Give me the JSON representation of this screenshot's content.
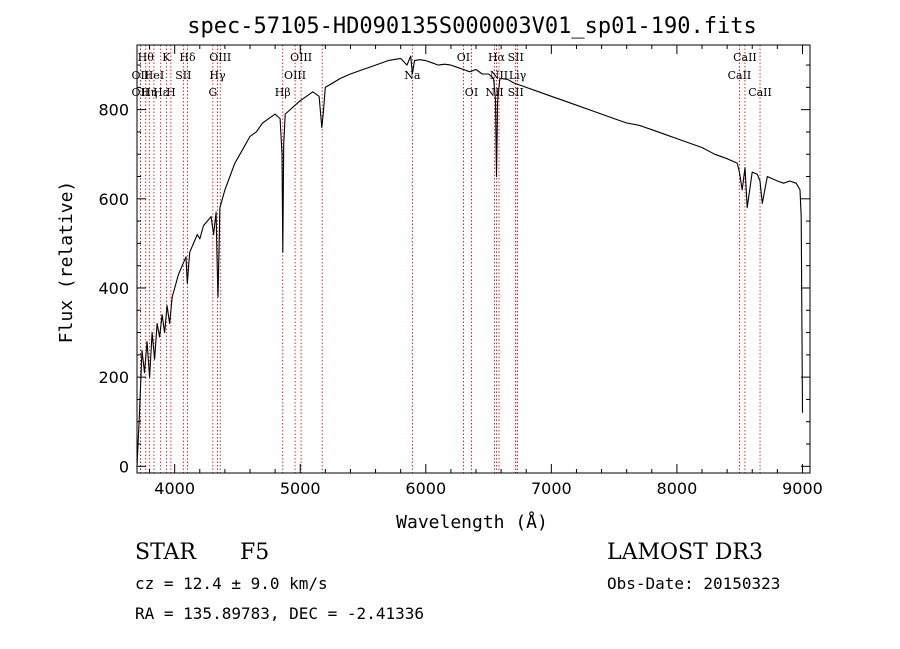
{
  "chart_data": {
    "type": "line",
    "title": "spec-57105-HD090135S000003V01_sp01-190.fits",
    "xlabel": "Wavelength (Å)",
    "ylabel": "Flux (relative)",
    "xlim": [
      3700,
      9060
    ],
    "ylim": [
      -15,
      945
    ],
    "xticks": [
      4000,
      5000,
      6000,
      7000,
      8000,
      9000
    ],
    "yticks": [
      0,
      200,
      400,
      600,
      800
    ],
    "series": [
      {
        "name": "flux",
        "x": [
          3700,
          3720,
          3740,
          3760,
          3780,
          3800,
          3820,
          3840,
          3860,
          3880,
          3900,
          3920,
          3940,
          3960,
          3980,
          4000,
          4030,
          4060,
          4090,
          4101,
          4120,
          4150,
          4180,
          4200,
          4230,
          4260,
          4290,
          4310,
          4330,
          4340,
          4345,
          4360,
          4380,
          4400,
          4440,
          4480,
          4520,
          4560,
          4600,
          4650,
          4700,
          4750,
          4800,
          4840,
          4855,
          4861,
          4868,
          4880,
          4920,
          4960,
          5000,
          5050,
          5100,
          5150,
          5172,
          5183,
          5200,
          5260,
          5320,
          5400,
          5500,
          5600,
          5700,
          5800,
          5850,
          5880,
          5893,
          5910,
          5950,
          6000,
          6050,
          6100,
          6150,
          6200,
          6250,
          6300,
          6350,
          6400,
          6450,
          6500,
          6540,
          6555,
          6563,
          6572,
          6590,
          6650,
          6700,
          6750,
          6800,
          6900,
          7000,
          7100,
          7200,
          7300,
          7400,
          7500,
          7600,
          7700,
          7800,
          7900,
          8000,
          8100,
          8200,
          8300,
          8400,
          8480,
          8498,
          8520,
          8542,
          8560,
          8600,
          8640,
          8662,
          8680,
          8720,
          8760,
          8800,
          8850,
          8900,
          8950,
          8980,
          8990,
          9000
        ],
        "y": [
          0,
          120,
          260,
          210,
          280,
          200,
          300,
          240,
          320,
          290,
          340,
          300,
          360,
          320,
          380,
          400,
          430,
          450,
          470,
          410,
          480,
          500,
          520,
          510,
          540,
          550,
          560,
          520,
          570,
          430,
          380,
          580,
          600,
          620,
          650,
          680,
          700,
          720,
          740,
          750,
          770,
          780,
          790,
          780,
          700,
          480,
          720,
          790,
          800,
          810,
          820,
          830,
          840,
          830,
          760,
          790,
          850,
          860,
          870,
          880,
          890,
          900,
          910,
          915,
          900,
          920,
          880,
          910,
          912,
          910,
          905,
          900,
          902,
          900,
          895,
          890,
          885,
          890,
          880,
          880,
          870,
          820,
          650,
          820,
          870,
          868,
          860,
          855,
          850,
          840,
          830,
          820,
          810,
          800,
          790,
          780,
          770,
          765,
          755,
          745,
          735,
          725,
          715,
          700,
          690,
          680,
          660,
          620,
          670,
          580,
          660,
          655,
          640,
          590,
          650,
          645,
          640,
          635,
          640,
          635,
          620,
          560,
          120
        ]
      }
    ],
    "lines": [
      {
        "wave": 3727,
        "label": "OII",
        "row": 2
      },
      {
        "wave": 3727,
        "label": "OII",
        "row": 1
      },
      {
        "wave": 3770,
        "label": "Hθ",
        "row": 0
      },
      {
        "wave": 3798,
        "label": "Hη",
        "row": 2
      },
      {
        "wave": 3835,
        "label": "HeI",
        "row": 1
      },
      {
        "wave": 3889,
        "label": "Hε",
        "row": 2
      },
      {
        "wave": 3934,
        "label": "K",
        "row": 0
      },
      {
        "wave": 3970,
        "label": "H",
        "row": 2
      },
      {
        "wave": 4069,
        "label": "SII",
        "row": 1
      },
      {
        "wave": 4102,
        "label": "Hδ",
        "row": 0
      },
      {
        "wave": 4304,
        "label": "G",
        "row": 2
      },
      {
        "wave": 4341,
        "label": "Hγ",
        "row": 1
      },
      {
        "wave": 4363,
        "label": "OIII",
        "row": 0
      },
      {
        "wave": 4861,
        "label": "Hβ",
        "row": 2
      },
      {
        "wave": 4959,
        "label": "OIII",
        "row": 1
      },
      {
        "wave": 5007,
        "label": "OIII",
        "row": 0
      },
      {
        "wave": 5175,
        "label": "",
        "row": 3
      },
      {
        "wave": 5893,
        "label": "Na",
        "row": 1
      },
      {
        "wave": 6300,
        "label": "OI",
        "row": 0
      },
      {
        "wave": 6364,
        "label": "OI",
        "row": 2
      },
      {
        "wave": 6548,
        "label": "NII",
        "row": 2
      },
      {
        "wave": 6563,
        "label": "Hα",
        "row": 0
      },
      {
        "wave": 6583,
        "label": "NII",
        "row": 1
      },
      {
        "wave": 6716,
        "label": "SII",
        "row": 0
      },
      {
        "wave": 6716,
        "label": "SII",
        "row": 2
      },
      {
        "wave": 6731,
        "label": "Liγ",
        "row": 1
      },
      {
        "wave": 8498,
        "label": "CaII",
        "row": 1
      },
      {
        "wave": 8542,
        "label": "CaII",
        "row": 0
      },
      {
        "wave": 8662,
        "label": "CaII",
        "row": 2
      }
    ]
  },
  "info": {
    "object_class": "STAR",
    "subclass": "F5",
    "cz": "cz = 12.4 ± 9.0 km/s",
    "coords": "RA = 135.89783, DEC =  -2.41336",
    "survey": "LAMOST DR3",
    "obs_date": "Obs-Date: 20150323"
  }
}
